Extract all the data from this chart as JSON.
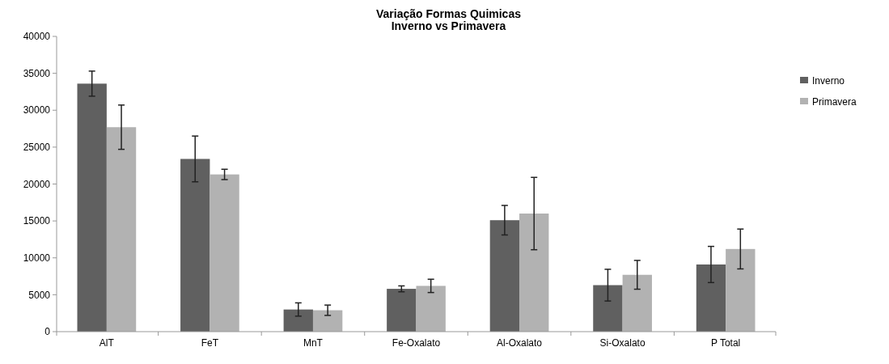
{
  "chart_data": {
    "type": "bar",
    "title": "Variação Formas Quimicas\nInverno vs Primavera",
    "categories": [
      "AlT",
      "FeT",
      "MnT",
      "Fe-Oxalato",
      "Al-Oxalato",
      "Si-Oxalato",
      "P Total"
    ],
    "series": [
      {
        "name": "Inverno",
        "color": "#606060",
        "values": [
          33600,
          23400,
          3000,
          5800,
          15100,
          6300,
          9100
        ],
        "errors": [
          1700,
          3100,
          900,
          400,
          2000,
          2150,
          2450
        ]
      },
      {
        "name": "Primavera",
        "color": "#b2b2b2",
        "values": [
          27700,
          21300,
          2900,
          6200,
          16000,
          7700,
          11200
        ],
        "errors": [
          3000,
          700,
          700,
          900,
          4900,
          1950,
          2700
        ]
      }
    ],
    "ylim": [
      0,
      40000
    ],
    "yticks": [
      0,
      5000,
      10000,
      15000,
      20000,
      25000,
      30000,
      35000,
      40000
    ],
    "grid": false,
    "legend": "right"
  }
}
